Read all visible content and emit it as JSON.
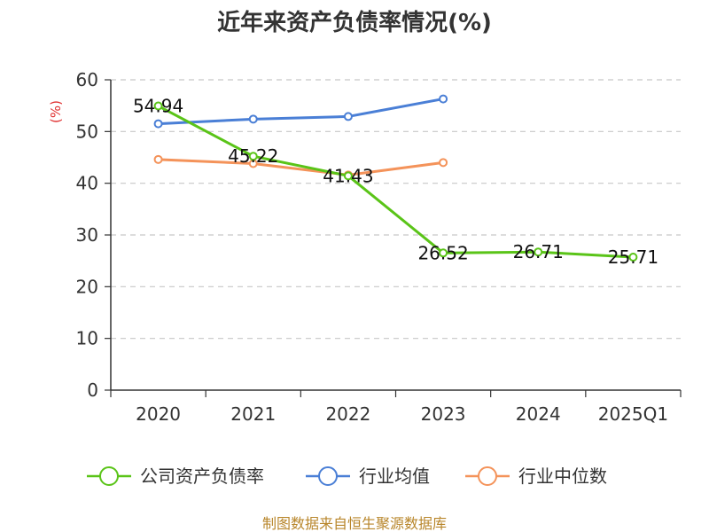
{
  "chart_data": {
    "type": "line",
    "title": "近年来资产负债率情况(%)",
    "ylabel": "(%)",
    "categories": [
      "2020",
      "2021",
      "2022",
      "2023",
      "2024",
      "2025Q1"
    ],
    "yticks": [
      "0",
      "10",
      "20",
      "30",
      "40",
      "50",
      "60"
    ],
    "ylim": [
      0,
      60
    ],
    "grid": true,
    "legend_position": "bottom",
    "series": [
      {
        "name": "公司资产负债率",
        "color": "#5ac418",
        "values": [
          54.94,
          45.22,
          41.43,
          26.52,
          26.71,
          25.71
        ],
        "labels": [
          "54.94",
          "45.22",
          "41.43",
          "26.52",
          "26.71",
          "25.71"
        ]
      },
      {
        "name": "行业均值",
        "color": "#4a7fd6",
        "values": [
          51.5,
          52.4,
          52.9,
          56.3,
          null,
          null
        ]
      },
      {
        "name": "行业中位数",
        "color": "#f4935a",
        "values": [
          44.6,
          43.8,
          41.6,
          44.0,
          null,
          null
        ]
      }
    ]
  },
  "source": "制图数据来自恒生聚源数据库"
}
